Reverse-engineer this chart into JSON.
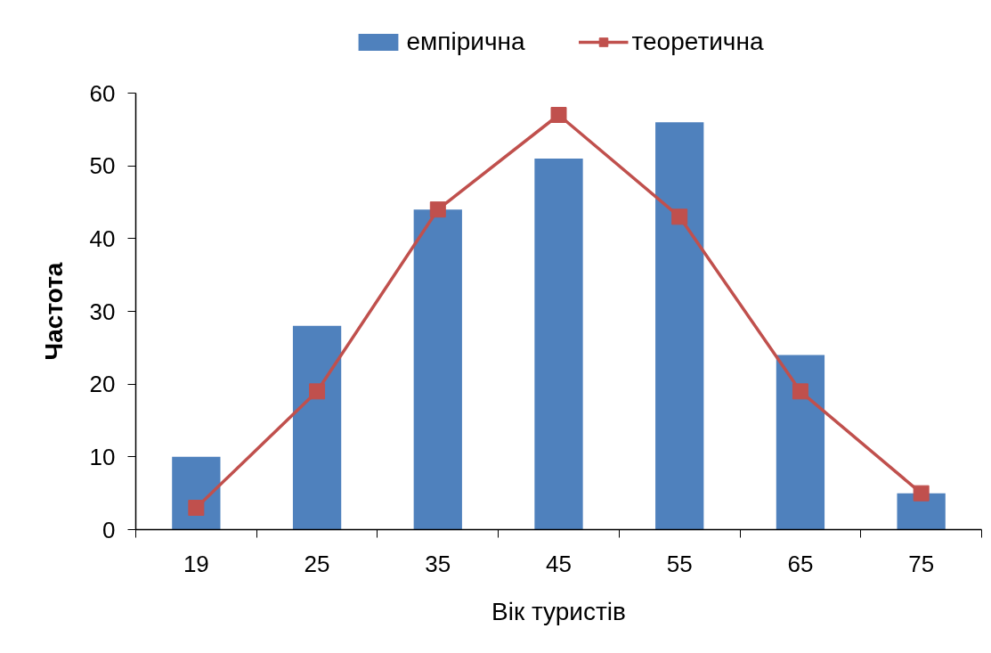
{
  "chart_data": {
    "type": "bar",
    "categories": [
      "19",
      "25",
      "35",
      "45",
      "55",
      "65",
      "75"
    ],
    "series": [
      {
        "name": "емпірична",
        "color": "#4f81bd",
        "values": [
          10,
          28,
          44,
          51,
          56,
          24,
          5
        ]
      },
      {
        "name": "теоретична",
        "type": "line",
        "color": "#c0504d",
        "marker": "square",
        "line_style": "solid",
        "values": [
          3,
          19,
          44,
          57,
          43,
          19,
          5
        ]
      }
    ],
    "xlabel": "Вік туристів",
    "ylabel": "Частота",
    "ylim": [
      0,
      60
    ],
    "yticks": [
      0,
      10,
      20,
      30,
      40,
      50,
      60
    ],
    "legend": "top"
  }
}
